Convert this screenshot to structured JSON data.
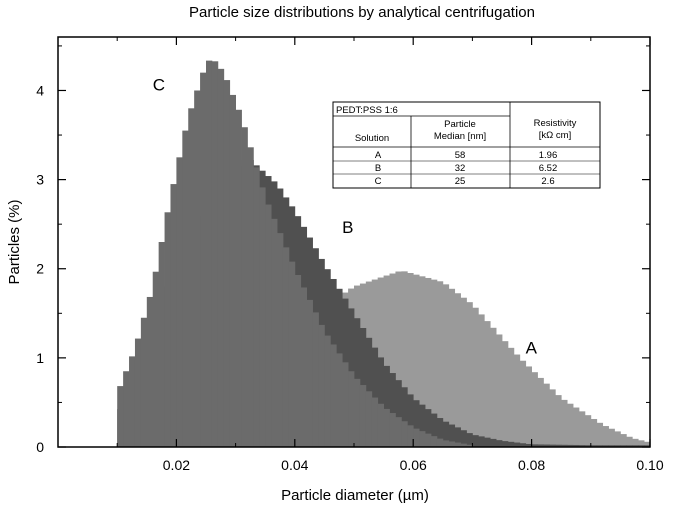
{
  "chart_data": {
    "type": "area",
    "title": "Particle size distributions by analytical centrifugation",
    "xlabel": "Particle diameter (µm)",
    "ylabel": "Particles (%)",
    "xlim": [
      0,
      0.1
    ],
    "ylim": [
      0,
      4.6
    ],
    "x_ticks": [
      "0.02",
      "0.04",
      "0.06",
      "0.08",
      "0.10"
    ],
    "y_ticks": [
      "0",
      "1",
      "2",
      "3",
      "4"
    ],
    "grid": false,
    "series": [
      {
        "name": "A",
        "color": "#9a9a9a",
        "points": [
          [
            0.01,
            0.0
          ],
          [
            0.02,
            0.25
          ],
          [
            0.03,
            0.75
          ],
          [
            0.04,
            1.35
          ],
          [
            0.05,
            1.8
          ],
          [
            0.058,
            1.98
          ],
          [
            0.065,
            1.85
          ],
          [
            0.07,
            1.6
          ],
          [
            0.078,
            1.0
          ],
          [
            0.085,
            0.55
          ],
          [
            0.092,
            0.25
          ],
          [
            0.097,
            0.1
          ],
          [
            0.1,
            0.05
          ]
        ]
      },
      {
        "name": "B",
        "color": "#505050",
        "points": [
          [
            0.01,
            0.35
          ],
          [
            0.015,
            1.1
          ],
          [
            0.02,
            2.1
          ],
          [
            0.025,
            2.8
          ],
          [
            0.032,
            3.25
          ],
          [
            0.037,
            2.95
          ],
          [
            0.04,
            2.65
          ],
          [
            0.045,
            2.05
          ],
          [
            0.05,
            1.5
          ],
          [
            0.055,
            0.95
          ],
          [
            0.06,
            0.55
          ],
          [
            0.065,
            0.3
          ],
          [
            0.07,
            0.14
          ],
          [
            0.075,
            0.07
          ],
          [
            0.08,
            0.03
          ],
          [
            0.09,
            0.02
          ],
          [
            0.1,
            0.02
          ]
        ]
      },
      {
        "name": "C",
        "color": "#6b6b6b",
        "points": [
          [
            0.01,
            0.6
          ],
          [
            0.013,
            1.1
          ],
          [
            0.016,
            1.8
          ],
          [
            0.019,
            2.8
          ],
          [
            0.022,
            3.7
          ],
          [
            0.025,
            4.3
          ],
          [
            0.026,
            4.37
          ],
          [
            0.028,
            4.2
          ],
          [
            0.031,
            3.7
          ],
          [
            0.035,
            2.8
          ],
          [
            0.04,
            2.0
          ],
          [
            0.045,
            1.3
          ],
          [
            0.05,
            0.8
          ],
          [
            0.055,
            0.45
          ],
          [
            0.06,
            0.22
          ],
          [
            0.065,
            0.08
          ],
          [
            0.07,
            0.02
          ]
        ]
      }
    ],
    "labels": [
      {
        "text": "C",
        "x": 0.016,
        "y": 4.0
      },
      {
        "text": "B",
        "x": 0.048,
        "y": 2.4
      },
      {
        "text": "A",
        "x": 0.079,
        "y": 1.05
      }
    ],
    "table": {
      "caption": "PEDT:PSS 1:6",
      "header_row1": [
        "",
        "Particle",
        "Resistivity"
      ],
      "header_row2": [
        "Solution",
        "Median [nm]",
        "[kΩ cm]"
      ],
      "rows": [
        [
          "A",
          "58",
          "1.96"
        ],
        [
          "B",
          "32",
          "6.52"
        ],
        [
          "C",
          "25",
          "2.6"
        ]
      ]
    }
  }
}
